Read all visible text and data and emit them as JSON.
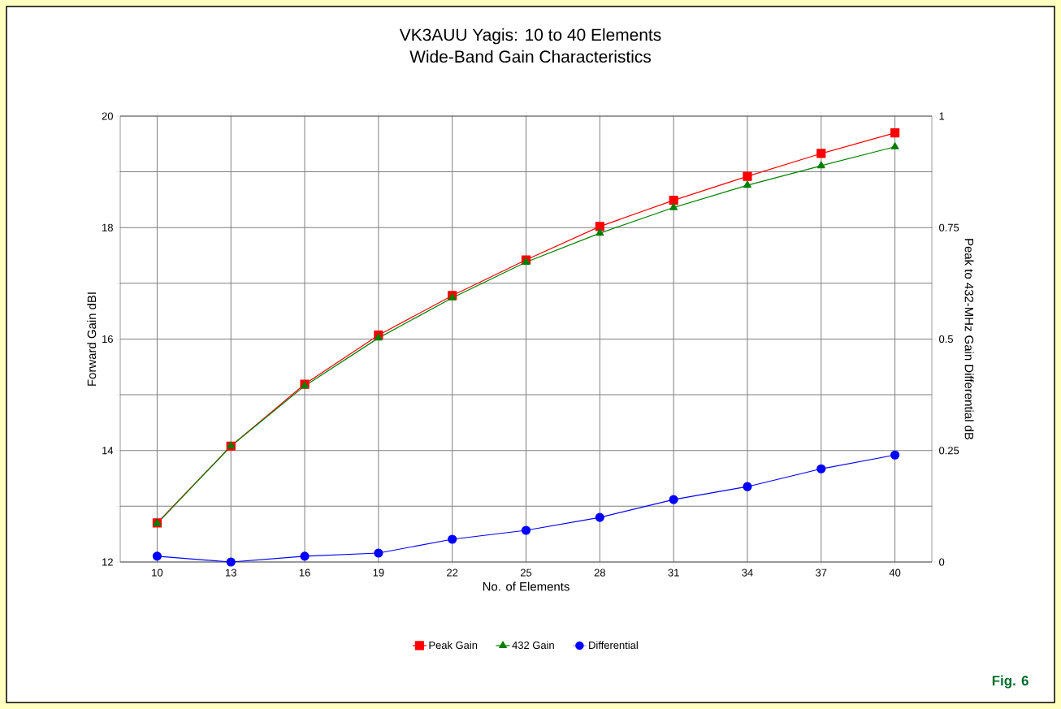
{
  "chart_data": {
    "type": "line",
    "title": "VK3AUU Yagis: 10 to 40 Elements\nWide-Band Gain Characteristics",
    "xlabel": "No. of Elements",
    "ylabel": "Forward Gain dBI",
    "y2label": "Peak to 432-MHz Gain Differential dB",
    "categories": [
      "10",
      "13",
      "16",
      "19",
      "22",
      "25",
      "28",
      "31",
      "34",
      "37",
      "40"
    ],
    "series": [
      {
        "name": "Peak Gain",
        "color": "#ff0000",
        "marker": "square",
        "values": [
          12.7,
          14.08,
          15.19,
          16.07,
          16.78,
          17.42,
          18.02,
          18.49,
          18.92,
          19.33,
          19.7
        ]
      },
      {
        "name": "432 Gain",
        "color": "#008000",
        "marker": "triangle",
        "values": [
          12.69,
          14.08,
          15.16,
          16.02,
          16.74,
          17.38,
          17.9,
          18.36,
          18.76,
          19.11,
          19.45
        ]
      },
      {
        "name": "Differential",
        "color": "#0000ff",
        "marker": "circle",
        "axis": "y2",
        "values": [
          0.013,
          0.0,
          0.013,
          0.02,
          0.051,
          0.071,
          0.1,
          0.14,
          0.169,
          0.209,
          0.24
        ]
      }
    ],
    "ylim": [
      12,
      20
    ],
    "yticks": [
      12,
      {
        "value": 13,
        "label": null
      },
      14,
      {
        "value": 15,
        "label": null
      },
      16,
      {
        "value": 17,
        "label": null
      },
      18,
      {
        "value": 19,
        "label": null
      },
      20
    ],
    "y2lim": [
      0,
      1
    ],
    "y2ticks": [
      0,
      0.25,
      0.5,
      0.75,
      1
    ],
    "grid": true,
    "legend": "bottom",
    "line_style": "solid",
    "annotations": [
      "Fig. 6"
    ]
  }
}
